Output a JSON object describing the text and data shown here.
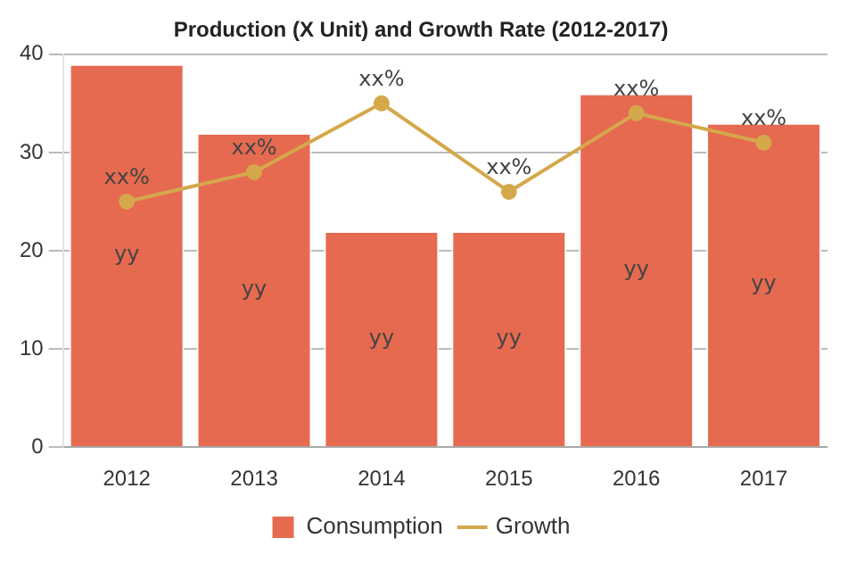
{
  "chart_data": {
    "type": "bar",
    "title": "Production (X Unit) and Growth Rate (2012-2017)",
    "categories": [
      "2012",
      "2013",
      "2014",
      "2015",
      "2016",
      "2017"
    ],
    "series": [
      {
        "name": "Consumption",
        "color": "#e66a50",
        "values": [
          39,
          32,
          22,
          22,
          36,
          33
        ],
        "value_labels": [
          "yy",
          "yy",
          "yy",
          "yy",
          "yy",
          "yy"
        ]
      },
      {
        "name": "Growth",
        "type": "line",
        "color": "#d4a84b",
        "values": [
          25,
          28,
          35,
          26,
          34,
          31
        ],
        "value_labels": [
          "xx%",
          "xx%",
          "xx%",
          "xx%",
          "xx%",
          "xx%"
        ]
      }
    ],
    "ylim": [
      0,
      40
    ],
    "yticks": [
      0,
      10,
      20,
      30,
      40
    ],
    "grid": "y",
    "legend": "bottom",
    "marker": "circle"
  }
}
